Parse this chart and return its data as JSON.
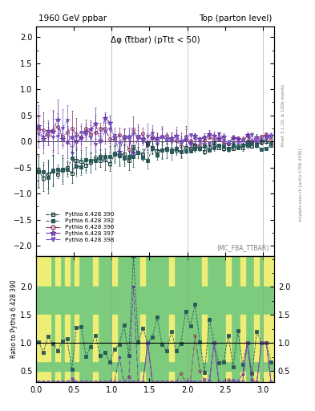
{
  "title_left": "1960 GeV ppbar",
  "title_right": "Top (parton level)",
  "plot_title": "Δφ (t̅tbar) (pTtt < 50)",
  "subplot_label": "(MC_FBA_TTBAR)",
  "right_label_top": "Rivet 3.1.10, ≥ 100k events",
  "right_label_bot": "mcplots.cern.ch [arXiv:1306.3436]",
  "ylabel_ratio": "Ratio to Pythia 6.428 390",
  "main_ylim": [
    -2.2,
    2.2
  ],
  "ratio_ylim": [
    0.3,
    2.55
  ],
  "xlim": [
    0.0,
    3.15
  ],
  "main_yticks": [
    -2.0,
    -1.5,
    -1.0,
    -0.5,
    0.0,
    0.5,
    1.0,
    1.5,
    2.0
  ],
  "ratio_yticks": [
    0.5,
    1.0,
    1.5,
    2.0
  ],
  "series_labels": [
    "Pythia 6.428 390",
    "Pythia 6.428 392",
    "Pythia 6.428 396",
    "Pythia 6.428 397",
    "Pythia 6.428 398"
  ],
  "color_390": "#1a3a3a",
  "color_392": "#2a5a5a",
  "color_396": "#8b3060",
  "color_397": "#6633aa",
  "color_398": "#7755bb",
  "band_green": "#7dcc7d",
  "band_yellow": "#eeee77",
  "band_outer_yellow": "#eeee77"
}
